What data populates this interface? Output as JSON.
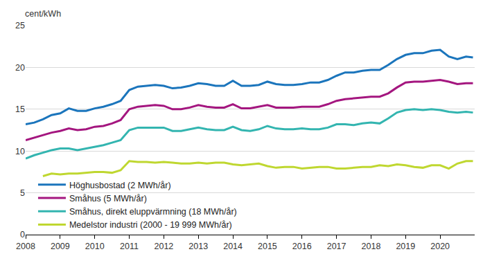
{
  "chart_data": {
    "type": "line",
    "y_label": "cent/kWh",
    "x": [
      2008,
      2008.25,
      2008.5,
      2008.75,
      2009,
      2009.25,
      2009.5,
      2009.75,
      2010,
      2010.25,
      2010.5,
      2010.75,
      2011,
      2011.25,
      2011.5,
      2011.75,
      2012,
      2012.25,
      2012.5,
      2012.75,
      2013,
      2013.25,
      2013.5,
      2013.75,
      2014,
      2014.25,
      2014.5,
      2014.75,
      2015,
      2015.25,
      2015.5,
      2015.75,
      2016,
      2016.25,
      2016.5,
      2016.75,
      2017,
      2017.25,
      2017.5,
      2017.75,
      2018,
      2018.25,
      2018.5,
      2018.75,
      2019,
      2019.25,
      2019.5,
      2019.75,
      2020,
      2020.25,
      2020.5,
      2020.75,
      2020.95
    ],
    "xlim": [
      2008,
      2021
    ],
    "xticks": [
      2008,
      2009,
      2010,
      2011,
      2012,
      2013,
      2014,
      2015,
      2016,
      2017,
      2018,
      2019,
      2020
    ],
    "ylim": [
      0,
      25
    ],
    "yticks": [
      0,
      5,
      10,
      15,
      20,
      25
    ],
    "grid": true,
    "legend": "lower left",
    "series": [
      {
        "name": "Höghusbostad (2 MWh/år)",
        "color": "#1b75bc",
        "values": [
          13.2,
          13.4,
          13.8,
          14.3,
          14.5,
          15.1,
          14.8,
          14.8,
          15.1,
          15.3,
          15.6,
          16.0,
          17.3,
          17.7,
          17.8,
          17.9,
          17.8,
          17.5,
          17.6,
          17.8,
          18.1,
          18.0,
          17.8,
          17.8,
          18.4,
          17.8,
          17.8,
          17.9,
          18.3,
          18.0,
          17.9,
          17.9,
          18.0,
          18.2,
          18.2,
          18.5,
          19.0,
          19.4,
          19.4,
          19.6,
          19.7,
          19.7,
          20.3,
          21.0,
          21.5,
          21.7,
          21.7,
          22.0,
          22.1,
          21.3,
          21.0,
          21.3,
          21.2
        ]
      },
      {
        "name": "Småhus (5 MWh/år)",
        "color": "#a4167f",
        "values": [
          11.3,
          11.6,
          11.9,
          12.2,
          12.4,
          12.7,
          12.5,
          12.6,
          12.9,
          13.0,
          13.3,
          13.7,
          15.0,
          15.3,
          15.4,
          15.5,
          15.4,
          15.0,
          15.0,
          15.2,
          15.5,
          15.3,
          15.2,
          15.2,
          15.6,
          15.1,
          15.1,
          15.3,
          15.5,
          15.2,
          15.2,
          15.2,
          15.3,
          15.3,
          15.3,
          15.6,
          16.0,
          16.2,
          16.3,
          16.4,
          16.5,
          16.5,
          16.9,
          17.6,
          18.2,
          18.3,
          18.3,
          18.4,
          18.5,
          18.3,
          18.0,
          18.1,
          18.1
        ]
      },
      {
        "name": "Småhus, direkt eluppvärmning (18 MWh/år)",
        "color": "#33b5b0",
        "values": [
          9.1,
          9.5,
          9.8,
          10.1,
          10.3,
          10.3,
          10.1,
          10.3,
          10.5,
          10.7,
          11.0,
          11.3,
          12.5,
          12.8,
          12.8,
          12.8,
          12.8,
          12.4,
          12.4,
          12.6,
          12.8,
          12.6,
          12.5,
          12.5,
          12.9,
          12.5,
          12.4,
          12.6,
          13.0,
          12.7,
          12.6,
          12.6,
          12.7,
          12.6,
          12.6,
          12.8,
          13.2,
          13.2,
          13.1,
          13.3,
          13.4,
          13.3,
          13.9,
          14.6,
          14.9,
          15.0,
          14.9,
          15.0,
          14.9,
          14.7,
          14.6,
          14.7,
          14.6
        ]
      },
      {
        "name": "Medelstor industri (2000 - 19 999 MWh/år)",
        "color": "#bfd730",
        "values": [
          null,
          null,
          7.0,
          7.3,
          7.2,
          7.3,
          7.3,
          7.4,
          7.5,
          7.5,
          7.4,
          7.7,
          8.8,
          8.7,
          8.7,
          8.6,
          8.7,
          8.6,
          8.5,
          8.5,
          8.6,
          8.5,
          8.6,
          8.6,
          8.4,
          8.3,
          8.4,
          8.5,
          8.2,
          8.0,
          8.1,
          8.1,
          7.9,
          8.0,
          8.1,
          8.1,
          7.9,
          7.9,
          8.0,
          8.1,
          8.1,
          8.3,
          8.2,
          8.4,
          8.3,
          8.1,
          8.0,
          8.3,
          8.3,
          7.9,
          8.5,
          8.8,
          8.8
        ]
      }
    ]
  }
}
